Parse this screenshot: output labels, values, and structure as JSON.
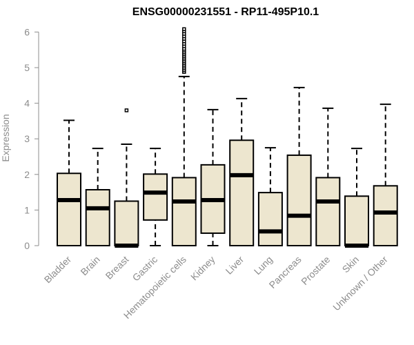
{
  "chart_data": {
    "type": "boxplot",
    "title": "ENSG00000231551 - RP11-495P10.1",
    "xlabel": "",
    "ylabel": "Expression",
    "ylim": [
      0,
      6
    ],
    "yticks": [
      0,
      1,
      2,
      3,
      4,
      5,
      6
    ],
    "grid": false,
    "colors": {
      "box_fill": "#ede6cf",
      "stroke": "#000000",
      "axis": "#8c8c8c"
    },
    "categories": [
      "Bladder",
      "Brain",
      "Breast",
      "Gastric",
      "Hematopoietic cells",
      "Kidney",
      "Liver",
      "Lung",
      "Pancreas",
      "Prostate",
      "Skin",
      "Unknown / Other"
    ],
    "boxes": [
      {
        "name": "Bladder",
        "whisker_low": 0,
        "q1": 0,
        "median": 1.28,
        "q3": 2.03,
        "whisker_high": 3.52,
        "outliers": []
      },
      {
        "name": "Brain",
        "whisker_low": 0,
        "q1": 0,
        "median": 1.05,
        "q3": 1.57,
        "whisker_high": 2.73,
        "outliers": []
      },
      {
        "name": "Breast",
        "whisker_low": 0,
        "q1": 0,
        "median": 0.0,
        "q3": 1.25,
        "whisker_high": 2.85,
        "outliers": [
          3.8
        ]
      },
      {
        "name": "Gastric",
        "whisker_low": 0,
        "q1": 0.72,
        "median": 1.49,
        "q3": 2.01,
        "whisker_high": 2.73,
        "outliers": []
      },
      {
        "name": "Hematopoietic cells",
        "whisker_low": 0,
        "q1": 0,
        "median": 1.24,
        "q3": 1.91,
        "whisker_high": 4.75,
        "outliers": [
          4.88,
          4.93,
          4.98,
          5.03,
          5.08,
          5.13,
          5.18,
          5.23,
          5.28,
          5.33,
          5.38,
          5.43,
          5.48,
          5.53,
          5.6,
          5.67,
          5.74,
          5.81,
          5.88,
          5.95,
          6.02,
          6.08
        ]
      },
      {
        "name": "Kidney",
        "whisker_low": 0,
        "q1": 0.35,
        "median": 1.28,
        "q3": 2.27,
        "whisker_high": 3.82,
        "outliers": []
      },
      {
        "name": "Liver",
        "whisker_low": 0,
        "q1": 0,
        "median": 1.98,
        "q3": 2.96,
        "whisker_high": 4.13,
        "outliers": []
      },
      {
        "name": "Lung",
        "whisker_low": 0,
        "q1": 0,
        "median": 0.4,
        "q3": 1.49,
        "whisker_high": 2.75,
        "outliers": []
      },
      {
        "name": "Pancreas",
        "whisker_low": 0,
        "q1": 0,
        "median": 0.84,
        "q3": 2.54,
        "whisker_high": 4.44,
        "outliers": []
      },
      {
        "name": "Prostate",
        "whisker_low": 0,
        "q1": 0,
        "median": 1.24,
        "q3": 1.91,
        "whisker_high": 3.86,
        "outliers": []
      },
      {
        "name": "Skin",
        "whisker_low": 0,
        "q1": 0,
        "median": 0.0,
        "q3": 1.39,
        "whisker_high": 2.73,
        "outliers": []
      },
      {
        "name": "Unknown / Other",
        "whisker_low": 0,
        "q1": 0,
        "median": 0.93,
        "q3": 1.68,
        "whisker_high": 3.97,
        "outliers": []
      }
    ]
  }
}
